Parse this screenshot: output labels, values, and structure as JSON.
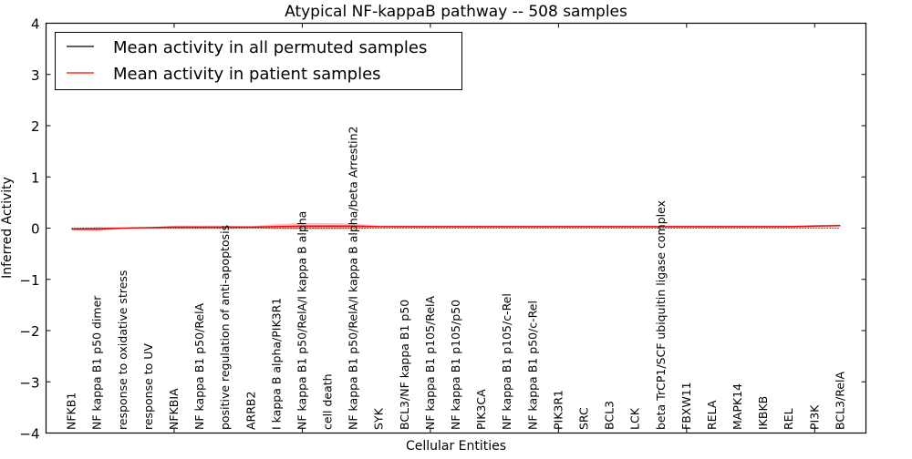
{
  "chart_data": {
    "type": "line",
    "title": "Atypical NF-kappaB pathway -- 508 samples",
    "xlabel": "Cellular Entities",
    "ylabel": "Inferred Activity",
    "xlim": [
      0,
      32
    ],
    "ylim": [
      -4,
      4
    ],
    "xticks": [
      0,
      5,
      10,
      15,
      20,
      25,
      30
    ],
    "yticks": [
      -4,
      -3,
      -2,
      -1,
      0,
      1,
      2,
      3,
      4
    ],
    "ytick_labels": [
      "−4",
      "−3",
      "−2",
      "−1",
      "0",
      "1",
      "2",
      "3",
      "4"
    ],
    "grid": false,
    "legend_position": "top-left",
    "categories": [
      "NFKB1",
      "NF kappa B1 p50 dimer",
      "response to oxidative stress",
      "response to UV",
      "NFKBIA",
      "NF kappa B1 p50/RelA",
      "positive regulation of anti-apoptosis",
      "ARRB2",
      "I kappa B alpha/PIK3R1",
      "NF kappa B1 p50/RelA/I kappa B alpha",
      "cell death",
      "NF kappa B1 p50/RelA/I kappa B alpha/beta Arrestin2",
      "SYK",
      "BCL3/NF kappa B1 p50",
      "NF kappa B1 p105/RelA",
      "NF kappa B1 p105/p50",
      "PIK3CA",
      "NF kappa B1 p105/c-Rel",
      "NF kappa B1 p50/c-Rel",
      "PIK3R1",
      "SRC",
      "BCL3",
      "LCK",
      "beta TrCP1/SCF ubiquitin ligase complex",
      "FBXW11",
      "RELA",
      "MAPK14",
      "IKBKB",
      "REL",
      "PI3K",
      "BCL3/RelA"
    ],
    "series": [
      {
        "name": "Mean activity in all permuted samples",
        "color": "#000000",
        "values": [
          0,
          0,
          0,
          0,
          0,
          0,
          0,
          0,
          0,
          0,
          0,
          0,
          0,
          0,
          0,
          0,
          0,
          0,
          0,
          0,
          0,
          0,
          0,
          0,
          0,
          0,
          0,
          0,
          0,
          0,
          0
        ],
        "spread": [
          0.01,
          0.02,
          0.01,
          0.01,
          0.02,
          0.02,
          0.02,
          0.01,
          0.02,
          0.03,
          0.03,
          0.03,
          0.01,
          0.01,
          0.01,
          0.01,
          0.01,
          0.01,
          0.01,
          0.01,
          0.01,
          0.01,
          0.01,
          0.01,
          0.01,
          0.01,
          0.01,
          0.01,
          0.01,
          0.01,
          0.01
        ]
      },
      {
        "name": "Mean activity in patient samples",
        "color": "#ff0000",
        "values": [
          -0.02,
          -0.02,
          0.0,
          0.01,
          0.02,
          0.02,
          0.02,
          0.02,
          0.03,
          0.04,
          0.04,
          0.04,
          0.03,
          0.03,
          0.03,
          0.03,
          0.03,
          0.03,
          0.03,
          0.03,
          0.03,
          0.03,
          0.03,
          0.03,
          0.03,
          0.03,
          0.03,
          0.03,
          0.03,
          0.04,
          0.05
        ],
        "spread": [
          0.02,
          0.04,
          0.01,
          0.01,
          0.03,
          0.03,
          0.03,
          0.02,
          0.05,
          0.06,
          0.06,
          0.05,
          0.02,
          0.02,
          0.02,
          0.02,
          0.02,
          0.02,
          0.02,
          0.02,
          0.02,
          0.02,
          0.02,
          0.02,
          0.02,
          0.02,
          0.02,
          0.02,
          0.02,
          0.02,
          0.02
        ]
      }
    ]
  }
}
